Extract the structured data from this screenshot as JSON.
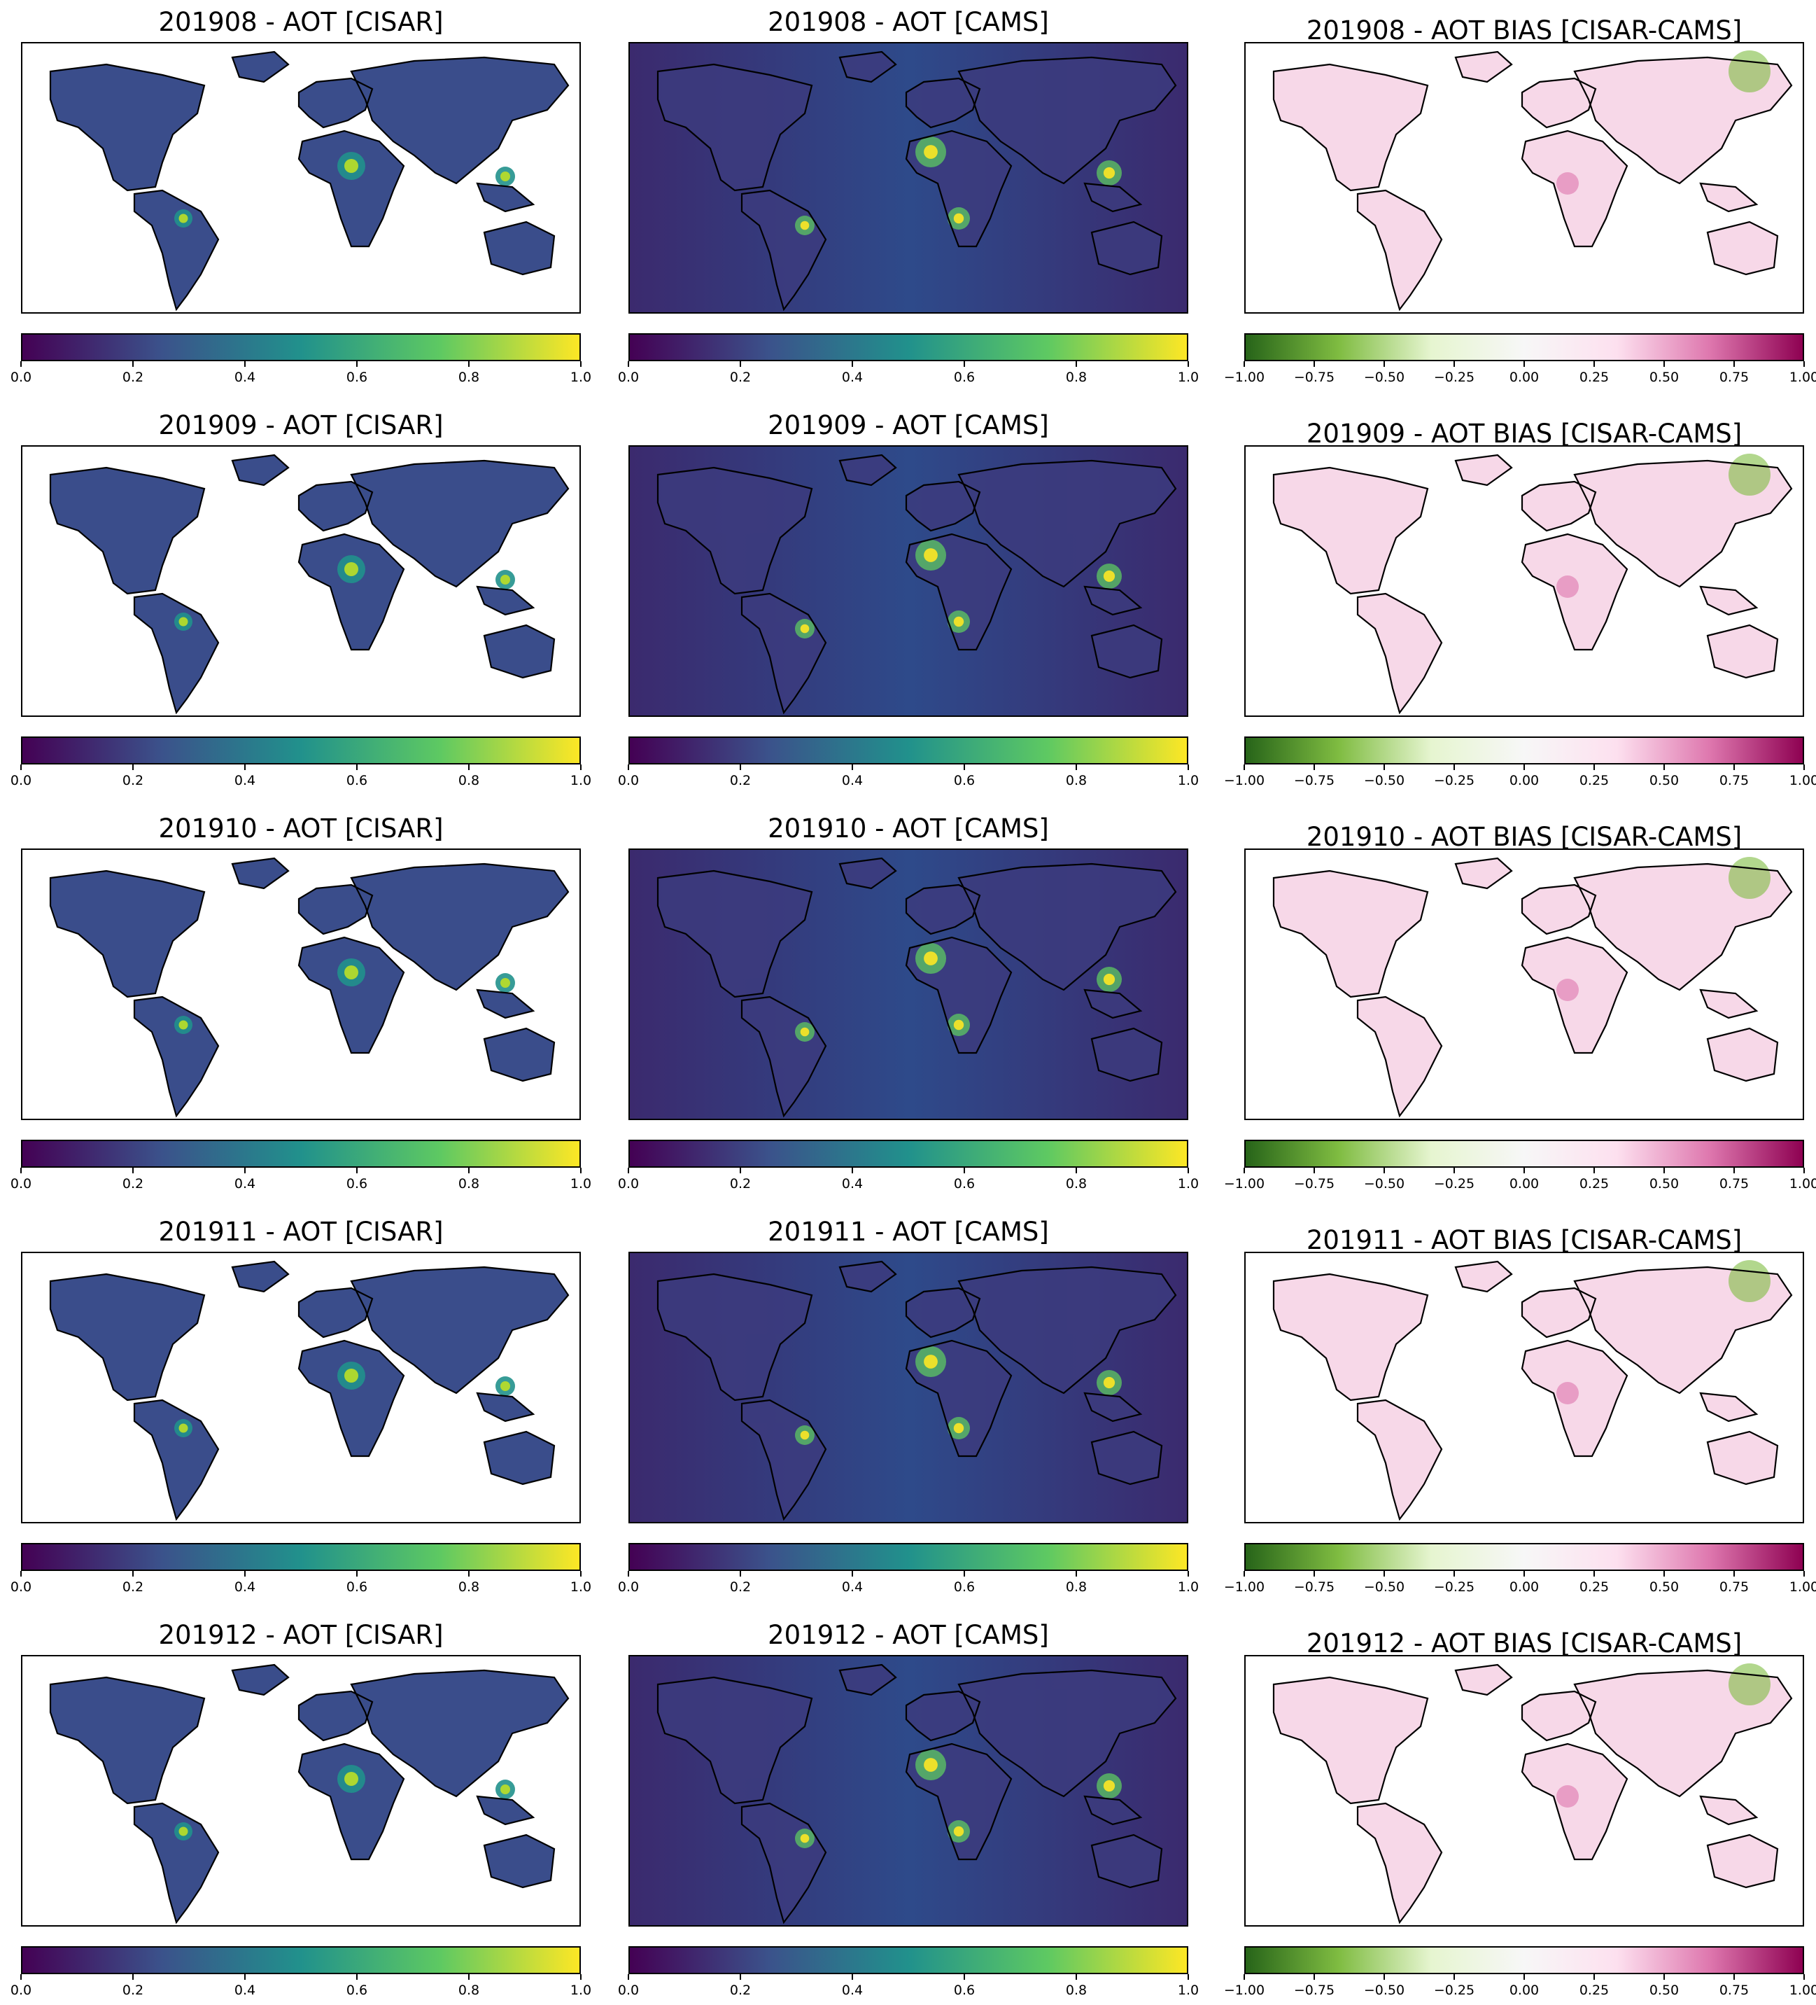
{
  "figure": {
    "rows": [
      "201908",
      "201909",
      "201910",
      "201911",
      "201912"
    ],
    "columns": [
      "CISAR",
      "CAMS",
      "BIAS"
    ],
    "titles": [
      [
        "201908 - AOT [CISAR]",
        "201908 - AOT [CAMS]",
        "201908 - AOT BIAS [CISAR-CAMS]"
      ],
      [
        "201909 - AOT [CISAR]",
        "201909 - AOT [CAMS]",
        "201909 - AOT BIAS [CISAR-CAMS]"
      ],
      [
        "201910 - AOT [CISAR]",
        "201910 - AOT [CAMS]",
        "201910 - AOT BIAS [CISAR-CAMS]"
      ],
      [
        "201911 - AOT [CISAR]",
        "201911 - AOT [CAMS]",
        "201911 - AOT BIAS [CISAR-CAMS]"
      ],
      [
        "201912 - AOT [CISAR]",
        "201912 - AOT [CAMS]",
        "201912 - AOT BIAS [CISAR-CAMS]"
      ]
    ]
  },
  "colorbars": {
    "aot": {
      "colormap": "viridis",
      "range": [
        0.0,
        1.0
      ],
      "tick_labels": [
        "0.0",
        "0.2",
        "0.4",
        "0.6",
        "0.8",
        "1.0"
      ],
      "tick_values": [
        0.0,
        0.2,
        0.4,
        0.6,
        0.8,
        1.0
      ],
      "colors": [
        "#440154",
        "#3b528b",
        "#21918c",
        "#5ec962",
        "#fde725"
      ]
    },
    "bias": {
      "colormap": "PiYG_r",
      "range": [
        -1.0,
        1.0
      ],
      "tick_labels": [
        "−1.00",
        "−0.75",
        "−0.50",
        "−0.25",
        "0.00",
        "0.25",
        "0.50",
        "0.75",
        "1.00"
      ],
      "tick_values": [
        -1.0,
        -0.75,
        -0.5,
        -0.25,
        0.0,
        0.25,
        0.5,
        0.75,
        1.0
      ],
      "colors": [
        "#276419",
        "#7fbc41",
        "#e6f5d0",
        "#f7f7f7",
        "#fde0ef",
        "#de77ae",
        "#8e0152"
      ]
    }
  },
  "map_colors": {
    "ocean_cams": "#2e4a8a",
    "ocean_cams_dark": "#3b2a6e",
    "land_cisar": "#3a4d8b",
    "land_bias": "#f7d8e8",
    "coast": "#000000",
    "nodata": "#ffffff"
  }
}
